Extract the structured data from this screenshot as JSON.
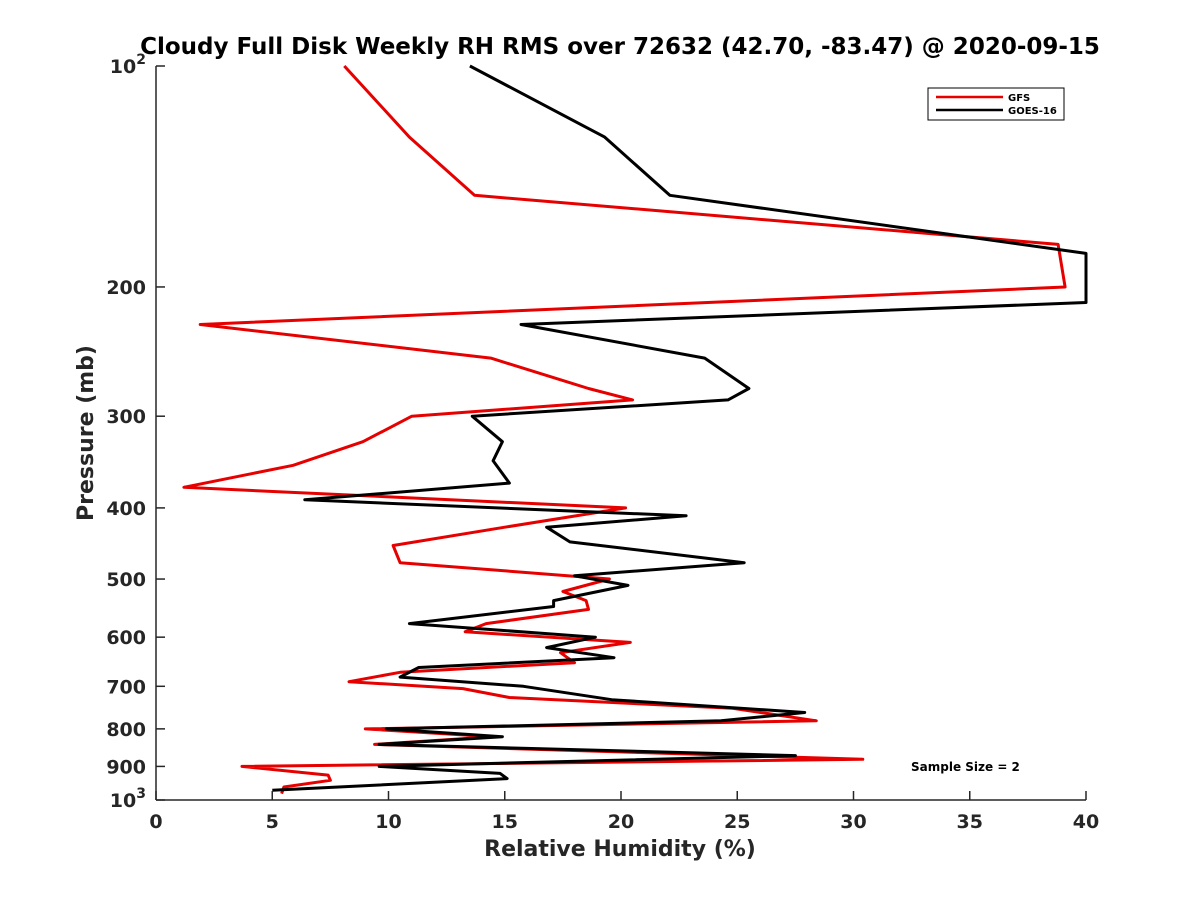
{
  "chart_data": {
    "type": "line",
    "title": "Cloudy Full Disk Weekly RH RMS over 72632 (42.70, -83.47) @ 2020-09-15",
    "xlabel": "Relative Humidity (%)",
    "ylabel": "Pressure (mb)",
    "xlim": [
      0,
      40
    ],
    "ylim": [
      100,
      1000
    ],
    "y_scale": "log",
    "y_reversed": true,
    "x_ticks": [
      "0",
      "5",
      "10",
      "15",
      "20",
      "25",
      "30",
      "35",
      "40"
    ],
    "y_ticks": [
      {
        "value": 100,
        "label": "10",
        "sup": "2"
      },
      {
        "value": 200,
        "label": "200",
        "sup": ""
      },
      {
        "value": 300,
        "label": "300",
        "sup": ""
      },
      {
        "value": 400,
        "label": "400",
        "sup": ""
      },
      {
        "value": 500,
        "label": "500",
        "sup": ""
      },
      {
        "value": 600,
        "label": "600",
        "sup": ""
      },
      {
        "value": 700,
        "label": "700",
        "sup": ""
      },
      {
        "value": 800,
        "label": "800",
        "sup": ""
      },
      {
        "value": 900,
        "label": "900",
        "sup": ""
      },
      {
        "value": 1000,
        "label": "10",
        "sup": "3"
      }
    ],
    "grid": false,
    "legend_position": "top-right",
    "annotation": "Sample Size = 2",
    "series": [
      {
        "name": "GFS",
        "color": "#e60000",
        "points": [
          [
            8.1,
            100
          ],
          [
            10.9,
            125
          ],
          [
            13.7,
            150
          ],
          [
            38.8,
            175
          ],
          [
            39.1,
            200
          ],
          [
            1.9,
            225
          ],
          [
            14.4,
            250
          ],
          [
            18.6,
            275
          ],
          [
            20.5,
            285
          ],
          [
            11.0,
            300
          ],
          [
            8.9,
            325
          ],
          [
            5.9,
            350
          ],
          [
            1.2,
            375
          ],
          [
            20.2,
            400
          ],
          [
            15.0,
            425
          ],
          [
            10.2,
            450
          ],
          [
            10.5,
            475
          ],
          [
            19.5,
            500
          ],
          [
            17.5,
            520
          ],
          [
            18.5,
            535
          ],
          [
            18.6,
            550
          ],
          [
            14.2,
            575
          ],
          [
            13.3,
            590
          ],
          [
            20.4,
            610
          ],
          [
            17.4,
            630
          ],
          [
            18.0,
            650
          ],
          [
            10.5,
            670
          ],
          [
            8.3,
            690
          ],
          [
            13.2,
            705
          ],
          [
            15.2,
            725
          ],
          [
            24.8,
            750
          ],
          [
            28.4,
            780
          ],
          [
            9.0,
            800
          ],
          [
            14.5,
            820
          ],
          [
            9.4,
            840
          ],
          [
            30.4,
            880
          ],
          [
            3.7,
            900
          ],
          [
            7.4,
            925
          ],
          [
            7.5,
            940
          ],
          [
            5.5,
            960
          ],
          [
            5.4,
            980
          ]
        ]
      },
      {
        "name": "GOES-16",
        "color": "#000000",
        "points": [
          [
            13.5,
            100
          ],
          [
            19.3,
            125
          ],
          [
            22.1,
            150
          ],
          [
            40.0,
            180
          ],
          [
            40.0,
            210
          ],
          [
            15.7,
            225
          ],
          [
            23.6,
            250
          ],
          [
            25.5,
            275
          ],
          [
            24.6,
            285
          ],
          [
            13.6,
            300
          ],
          [
            14.9,
            325
          ],
          [
            14.5,
            345
          ],
          [
            15.2,
            370
          ],
          [
            6.4,
            390
          ],
          [
            22.8,
            410
          ],
          [
            16.8,
            425
          ],
          [
            17.8,
            445
          ],
          [
            25.3,
            475
          ],
          [
            18.0,
            495
          ],
          [
            20.3,
            510
          ],
          [
            17.1,
            535
          ],
          [
            17.1,
            545
          ],
          [
            10.9,
            575
          ],
          [
            18.9,
            600
          ],
          [
            16.8,
            620
          ],
          [
            19.7,
            640
          ],
          [
            11.3,
            660
          ],
          [
            10.5,
            680
          ],
          [
            15.8,
            700
          ],
          [
            19.6,
            730
          ],
          [
            27.9,
            760
          ],
          [
            24.3,
            780
          ],
          [
            9.9,
            800
          ],
          [
            14.9,
            820
          ],
          [
            9.6,
            840
          ],
          [
            27.5,
            870
          ],
          [
            9.6,
            900
          ],
          [
            14.8,
            920
          ],
          [
            15.1,
            935
          ],
          [
            5.0,
            970
          ]
        ]
      }
    ]
  }
}
